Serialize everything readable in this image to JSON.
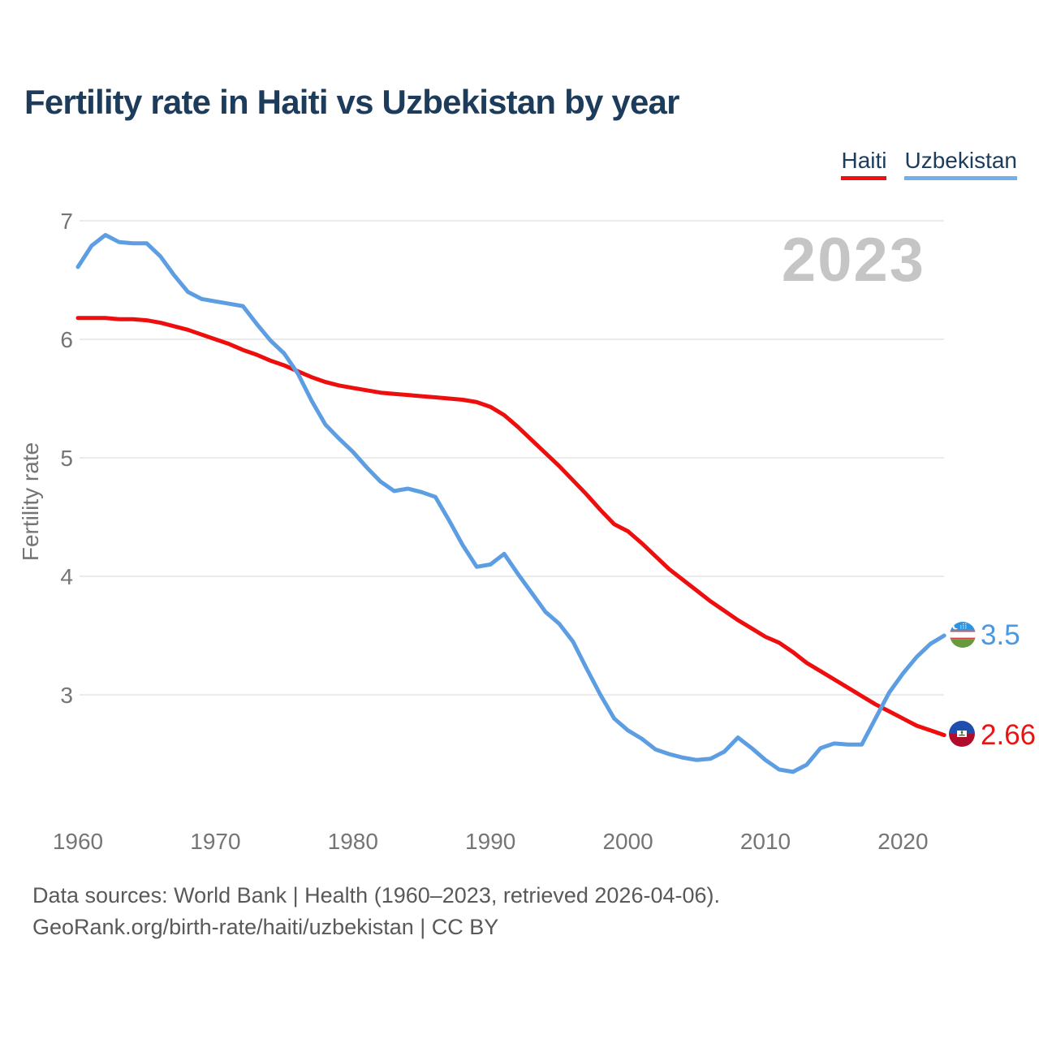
{
  "title": "Fertility rate in Haiti vs Uzbekistan by year",
  "watermark": "2023",
  "legend": [
    {
      "label": "Haiti",
      "underline_color": "#ee1111"
    },
    {
      "label": "Uzbekistan",
      "underline_color": "#74b0e8"
    }
  ],
  "y_axis": {
    "label": "Fertility rate",
    "ticks": [
      7,
      6,
      5,
      4,
      3
    ]
  },
  "x_axis": {
    "ticks": [
      "1960",
      "1970",
      "1980",
      "1990",
      "2000",
      "2010",
      "2020"
    ]
  },
  "end_labels": [
    {
      "series": "Uzbekistan",
      "value": "3.5",
      "color": "#4a97e4"
    },
    {
      "series": "Haiti",
      "value": "2.66",
      "color": "#ee1111"
    }
  ],
  "footer": {
    "line1": "Data sources: World Bank | Health (1960–2023, retrieved 2026-04-06).",
    "line2": "GeoRank.org/birth-rate/haiti/uzbekistan | CC BY"
  },
  "chart_data": {
    "type": "line",
    "title": "Fertility rate in Haiti vs Uzbekistan by year",
    "xlabel": "",
    "ylabel": "Fertility rate",
    "xlim": [
      1960,
      2023
    ],
    "ylim": [
      2.2,
      7
    ],
    "grid": "horizontal",
    "legend_position": "top-right",
    "x": [
      1960,
      1961,
      1962,
      1963,
      1964,
      1965,
      1966,
      1967,
      1968,
      1969,
      1970,
      1971,
      1972,
      1973,
      1974,
      1975,
      1976,
      1977,
      1978,
      1979,
      1980,
      1981,
      1982,
      1983,
      1984,
      1985,
      1986,
      1987,
      1988,
      1989,
      1990,
      1991,
      1992,
      1993,
      1994,
      1995,
      1996,
      1997,
      1998,
      1999,
      2000,
      2001,
      2002,
      2003,
      2004,
      2005,
      2006,
      2007,
      2008,
      2009,
      2010,
      2011,
      2012,
      2013,
      2014,
      2015,
      2016,
      2017,
      2018,
      2019,
      2020,
      2021,
      2022,
      2023
    ],
    "series": [
      {
        "name": "Haiti",
        "color": "#ee0e0e",
        "final_value": 2.66,
        "values": [
          6.18,
          6.18,
          6.18,
          6.17,
          6.17,
          6.16,
          6.14,
          6.11,
          6.08,
          6.04,
          6.0,
          5.96,
          5.91,
          5.87,
          5.82,
          5.78,
          5.73,
          5.68,
          5.64,
          5.61,
          5.59,
          5.57,
          5.55,
          5.54,
          5.53,
          5.52,
          5.51,
          5.5,
          5.49,
          5.47,
          5.43,
          5.36,
          5.26,
          5.15,
          5.04,
          4.93,
          4.81,
          4.69,
          4.56,
          4.44,
          4.38,
          4.28,
          4.17,
          4.06,
          3.97,
          3.88,
          3.79,
          3.71,
          3.63,
          3.56,
          3.49,
          3.44,
          3.36,
          3.27,
          3.2,
          3.13,
          3.06,
          2.99,
          2.92,
          2.86,
          2.8,
          2.74,
          2.7,
          2.66
        ]
      },
      {
        "name": "Uzbekistan",
        "color": "#5d9ee3",
        "final_value": 3.5,
        "values": [
          6.61,
          6.79,
          6.88,
          6.82,
          6.81,
          6.81,
          6.7,
          6.54,
          6.4,
          6.34,
          6.32,
          6.3,
          6.28,
          6.13,
          5.99,
          5.88,
          5.71,
          5.48,
          5.28,
          5.16,
          5.05,
          4.92,
          4.8,
          4.72,
          4.74,
          4.71,
          4.67,
          4.47,
          4.26,
          4.08,
          4.1,
          4.19,
          4.02,
          3.86,
          3.7,
          3.6,
          3.45,
          3.22,
          3.0,
          2.8,
          2.7,
          2.63,
          2.54,
          2.5,
          2.47,
          2.45,
          2.46,
          2.52,
          2.64,
          2.55,
          2.45,
          2.37,
          2.35,
          2.41,
          2.55,
          2.59,
          2.58,
          2.58,
          2.8,
          3.02,
          3.18,
          3.32,
          3.43,
          3.5
        ]
      }
    ]
  }
}
